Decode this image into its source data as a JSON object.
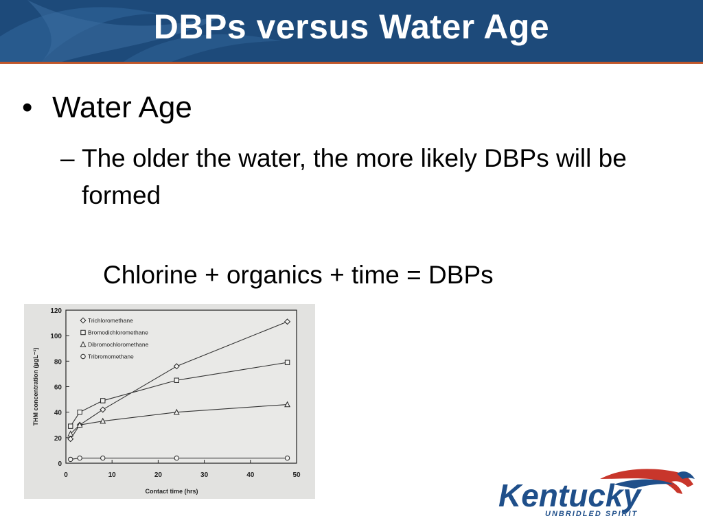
{
  "slide": {
    "title": "DBPs versus Water Age",
    "bullet": "Water Age",
    "sub_bullet": "The older the water, the more likely DBPs will be formed",
    "equation": "Chlorine + organics + time = DBPs"
  },
  "logo": {
    "name": "Kentucky",
    "tagline": "UNBRIDLED SPIRIT"
  },
  "colors": {
    "header": "#1d4a7a",
    "header_rule": "#c0562a",
    "logo_blue": "#1f4f8a",
    "logo_red": "#c8362b"
  },
  "chart_data": {
    "type": "line",
    "title": "",
    "xlabel": "Contact time (hrs)",
    "ylabel": "THM concentration (µgL⁻¹)",
    "xlim": [
      0,
      50
    ],
    "ylim": [
      0,
      120
    ],
    "xticks": [
      0,
      10,
      20,
      30,
      40,
      50
    ],
    "yticks": [
      0,
      20,
      40,
      60,
      80,
      100,
      120
    ],
    "legend_position": "top-left",
    "series": [
      {
        "name": "Trichloromethane",
        "marker": "diamond",
        "x": [
          1,
          3,
          8,
          24,
          48
        ],
        "y": [
          19,
          30,
          42,
          76,
          111
        ]
      },
      {
        "name": "Bromodichloromethane",
        "marker": "square",
        "x": [
          1,
          3,
          8,
          24,
          48
        ],
        "y": [
          29,
          40,
          49,
          65,
          79
        ]
      },
      {
        "name": "Dibromochloromethane",
        "marker": "triangle",
        "x": [
          1,
          3,
          8,
          24,
          48
        ],
        "y": [
          23,
          30,
          33,
          40,
          46
        ]
      },
      {
        "name": "Tribromomethane",
        "marker": "circle",
        "x": [
          1,
          3,
          8,
          24,
          48
        ],
        "y": [
          3,
          4,
          4,
          4,
          4
        ]
      }
    ]
  }
}
